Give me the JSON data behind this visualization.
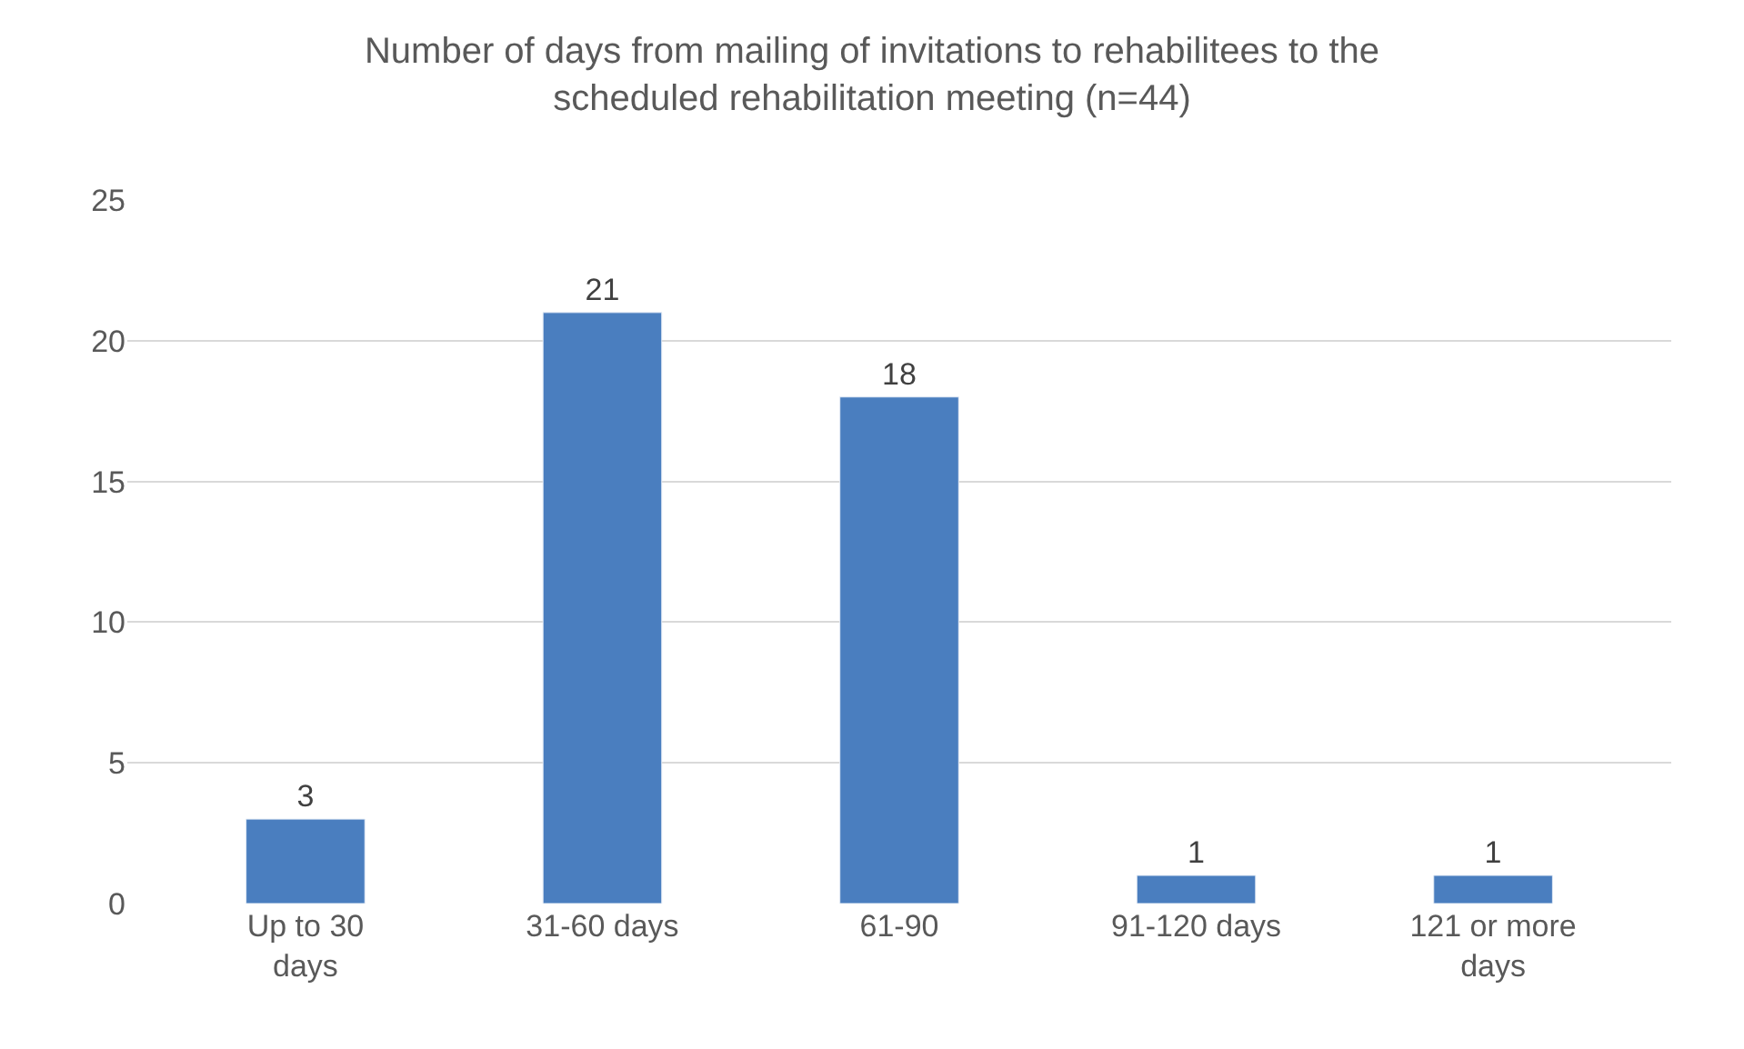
{
  "chart_data": {
    "type": "bar",
    "title": "Number of days from mailing of invitations to rehabilitees to the scheduled rehabilitation meeting (n=44)",
    "categories": [
      "Up to 30 days",
      "31-60 days",
      "61-90",
      "91-120 days",
      "121 or more days"
    ],
    "values": [
      3,
      21,
      18,
      1,
      1
    ],
    "color": "#4a7ebf",
    "ylim": [
      0,
      25
    ],
    "yticks": [
      0,
      5,
      10,
      15,
      20,
      25
    ],
    "grid": "y",
    "data_labels": true
  }
}
